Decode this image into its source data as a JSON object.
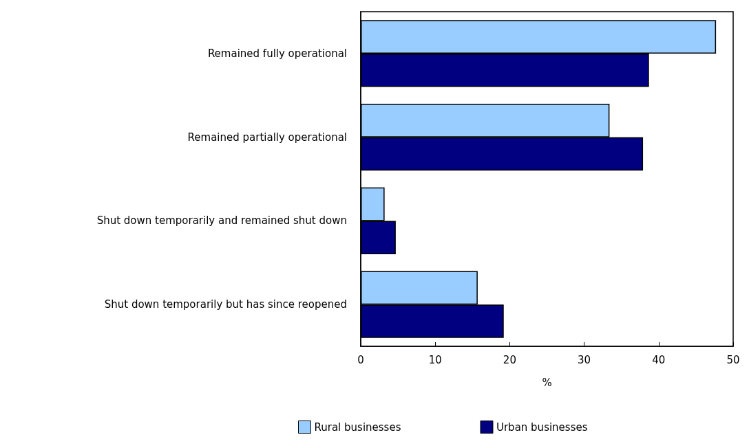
{
  "chart_data": {
    "type": "bar",
    "orientation": "horizontal",
    "categories": [
      "Remained fully operational",
      "Remained partially operational",
      "Shut down temporarily and remained shut down",
      "Shut down temporarily but has since reopened"
    ],
    "series": [
      {
        "name": "Rural businesses",
        "color": "#99ccff",
        "values": [
          47.7,
          33.4,
          3.2,
          15.7
        ]
      },
      {
        "name": "Urban businesses",
        "color": "#000080",
        "values": [
          38.7,
          37.9,
          4.7,
          19.2
        ]
      }
    ],
    "xlabel": "%",
    "xlim": [
      0,
      50
    ],
    "xticks": [
      0,
      10,
      20,
      30,
      40,
      50
    ],
    "grid": false,
    "legend": "bottom"
  }
}
